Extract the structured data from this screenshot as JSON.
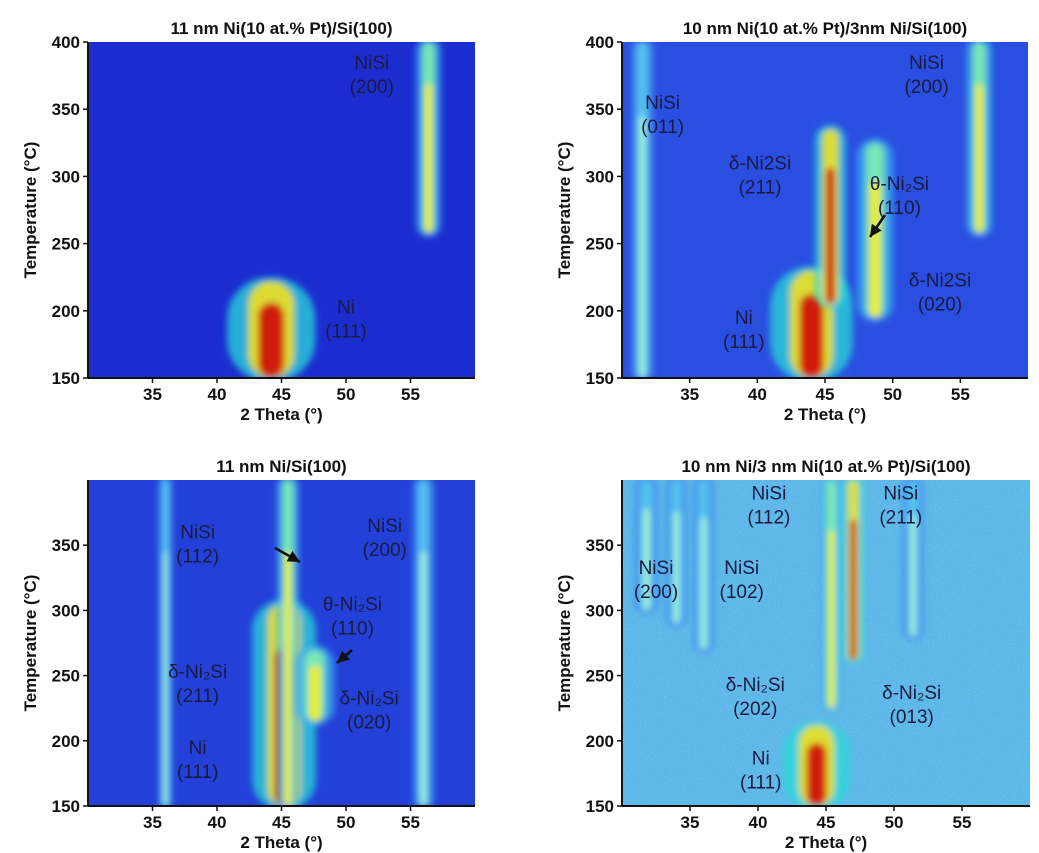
{
  "chart_data": [
    {
      "type": "heatmap",
      "title": "11 nm Ni(10 at.% Pt)/Si(100)",
      "xlabel": "2 Theta (°)",
      "ylabel": "Temperature (°C)",
      "xlim": [
        30,
        60
      ],
      "ylim": [
        150,
        400
      ],
      "xticks": [
        35,
        40,
        45,
        50,
        55
      ],
      "yticks": [
        150,
        200,
        250,
        300,
        350,
        400
      ],
      "background": "#1c2dd0",
      "features": [
        {
          "x": 44.2,
          "width": 3.6,
          "t_start": 150,
          "t_end": 222,
          "intensity": "high"
        },
        {
          "x": 56.4,
          "width": 1.0,
          "t_start": 258,
          "t_end": 400,
          "intensity": "medium"
        }
      ],
      "annotations": [
        {
          "lines": [
            "NiSi",
            "(200)"
          ],
          "x": 52.0,
          "y": 380
        },
        {
          "lines": [
            "Ni",
            "(111)"
          ],
          "x": 50.0,
          "y": 198
        }
      ]
    },
    {
      "type": "heatmap",
      "title": "10 nm Ni(10 at.% Pt)/3nm Ni/Si(100)",
      "xlabel": "2 Theta (°)",
      "ylabel": "Temperature (°C)",
      "xlim": [
        30,
        60
      ],
      "ylim": [
        150,
        400
      ],
      "xticks": [
        35,
        40,
        45,
        50,
        55
      ],
      "yticks": [
        150,
        200,
        250,
        300,
        350,
        400
      ],
      "background": "#2a4fe0",
      "features": [
        {
          "x": 31.5,
          "width": 0.9,
          "t_start": 150,
          "t_end": 400,
          "intensity": "low"
        },
        {
          "x": 44.0,
          "width": 3.2,
          "t_start": 150,
          "t_end": 230,
          "intensity": "high"
        },
        {
          "x": 45.4,
          "width": 1.2,
          "t_start": 205,
          "t_end": 335,
          "intensity": "high"
        },
        {
          "x": 48.7,
          "width": 1.4,
          "t_start": 195,
          "t_end": 325,
          "intensity": "medium"
        },
        {
          "x": 56.4,
          "width": 1.0,
          "t_start": 258,
          "t_end": 400,
          "intensity": "medium"
        }
      ],
      "annotations": [
        {
          "lines": [
            "NiSi",
            "(011)"
          ],
          "x": 33.0,
          "y": 350
        },
        {
          "lines": [
            "δ-Ni2Si",
            "(211)"
          ],
          "x": 40.2,
          "y": 305
        },
        {
          "lines": [
            "θ-Ni₂Si",
            "(110)"
          ],
          "x": 50.5,
          "y": 290
        },
        {
          "lines": [
            "δ-Ni2Si",
            "(020)"
          ],
          "x": 53.5,
          "y": 218
        },
        {
          "lines": [
            "Ni",
            "(111)"
          ],
          "x": 39.0,
          "y": 190
        },
        {
          "lines": [
            "NiSi",
            "(200)"
          ],
          "x": 52.5,
          "y": 380
        }
      ]
    },
    {
      "type": "heatmap",
      "title": "11 nm Ni/Si(100)",
      "xlabel": "2 Theta (°)",
      "ylabel": "Temperature (°C)",
      "xlim": [
        30,
        60
      ],
      "ylim": [
        150,
        400
      ],
      "xticks": [
        35,
        40,
        45,
        50,
        55
      ],
      "yticks": [
        150,
        200,
        250,
        300,
        350
      ],
      "background": "#2340d8",
      "features": [
        {
          "x": 45.2,
          "width": 2.6,
          "t_start": 150,
          "t_end": 305,
          "intensity": "high"
        },
        {
          "x": 45.5,
          "width": 0.9,
          "t_start": 150,
          "t_end": 400,
          "intensity": "medium"
        },
        {
          "x": 47.6,
          "width": 1.6,
          "t_start": 215,
          "t_end": 270,
          "intensity": "medium"
        },
        {
          "x": 36.0,
          "width": 0.6,
          "t_start": 150,
          "t_end": 400,
          "intensity": "low"
        },
        {
          "x": 56.0,
          "width": 0.9,
          "t_start": 150,
          "t_end": 400,
          "intensity": "low"
        }
      ],
      "annotations": [
        {
          "lines": [
            "NiSi",
            "(112)"
          ],
          "x": 38.5,
          "y": 355
        },
        {
          "lines": [
            "θ-Ni₂Si",
            "(110)"
          ],
          "x": 50.5,
          "y": 300
        },
        {
          "lines": [
            "δ-Ni₂Si",
            "(211)"
          ],
          "x": 38.5,
          "y": 248
        },
        {
          "lines": [
            "δ-Ni₂Si",
            "(020)"
          ],
          "x": 51.8,
          "y": 228
        },
        {
          "lines": [
            "Ni",
            "(111)"
          ],
          "x": 38.5,
          "y": 190
        },
        {
          "lines": [
            "NiSi",
            "(200)"
          ],
          "x": 53.0,
          "y": 360
        }
      ]
    },
    {
      "type": "heatmap",
      "title": "10 nm Ni/3 nm Ni(10 at.% Pt)/Si(100)",
      "xlabel": "2 Theta (°)",
      "ylabel": "Temperature (°C)",
      "xlim": [
        30,
        60
      ],
      "ylim": [
        150,
        400
      ],
      "xticks": [
        35,
        40,
        45,
        50,
        55
      ],
      "yticks": [
        150,
        200,
        250,
        300,
        350
      ],
      "background": "#5cb6ea",
      "features": [
        {
          "x": 44.3,
          "width": 2.6,
          "t_start": 150,
          "t_end": 212,
          "intensity": "high"
        },
        {
          "x": 45.4,
          "width": 0.8,
          "t_start": 225,
          "t_end": 400,
          "intensity": "medium"
        },
        {
          "x": 47.0,
          "width": 0.8,
          "t_start": 262,
          "t_end": 400,
          "intensity": "high"
        },
        {
          "x": 31.8,
          "width": 0.9,
          "t_start": 300,
          "t_end": 400,
          "intensity": "low"
        },
        {
          "x": 34.0,
          "width": 0.8,
          "t_start": 290,
          "t_end": 400,
          "intensity": "low"
        },
        {
          "x": 36.0,
          "width": 0.8,
          "t_start": 270,
          "t_end": 400,
          "intensity": "low"
        },
        {
          "x": 51.4,
          "width": 0.8,
          "t_start": 280,
          "t_end": 400,
          "intensity": "low"
        }
      ],
      "annotations": [
        {
          "lines": [
            "NiSi",
            "(112)"
          ],
          "x": 40.8,
          "y": 385
        },
        {
          "lines": [
            "NiSi",
            "(211)"
          ],
          "x": 50.5,
          "y": 385
        },
        {
          "lines": [
            "NiSi",
            "(200)"
          ],
          "x": 32.5,
          "y": 328
        },
        {
          "lines": [
            "NiSi",
            "(102)"
          ],
          "x": 38.8,
          "y": 328
        },
        {
          "lines": [
            "δ-Ni₂Si",
            "(202)"
          ],
          "x": 39.8,
          "y": 238
        },
        {
          "lines": [
            "δ-Ni₂Si",
            "(013)"
          ],
          "x": 51.3,
          "y": 232
        },
        {
          "lines": [
            "Ni",
            "(111)"
          ],
          "x": 40.2,
          "y": 182
        }
      ]
    }
  ]
}
